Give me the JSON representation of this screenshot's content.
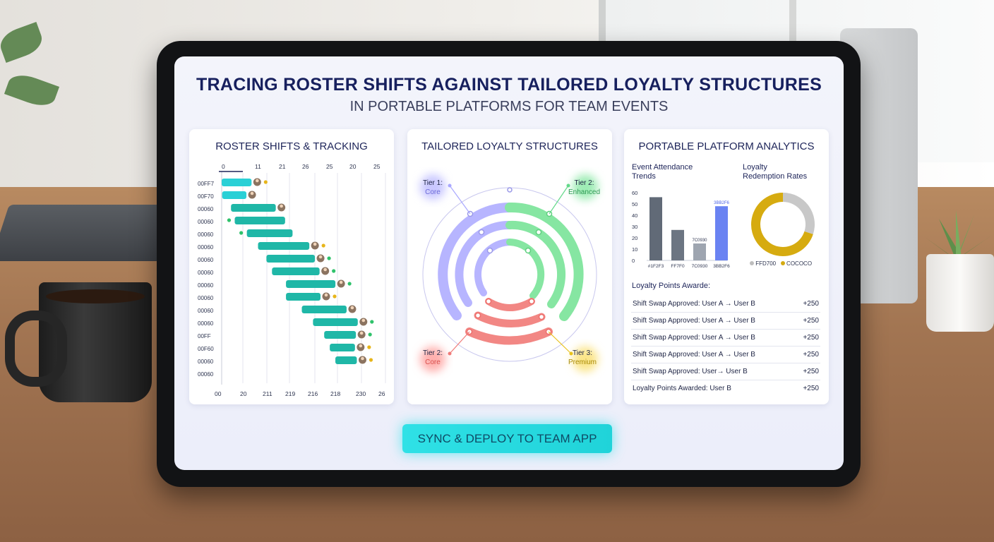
{
  "dashboard": {
    "title": "TRACING ROSTER SHIFTS AGAINST TAILORED LOYALTY STRUCTURES",
    "subtitle": "IN PORTABLE PLATFORMS FOR TEAM EVENTS"
  },
  "roster": {
    "title": "ROSTER SHIFTS & TRACKING",
    "top_ticks": [
      "0",
      "11",
      "21",
      "26",
      "25",
      "20",
      "25"
    ],
    "bottom_ticks": [
      "00",
      "20",
      "211",
      "219",
      "216",
      "218",
      "230",
      "26"
    ],
    "rows": [
      {
        "label": "00FF7",
        "start": 0.0,
        "len": 2.6,
        "avatar": true,
        "dot": "#e7b51a"
      },
      {
        "label": "00F70",
        "start": 0.05,
        "len": 2.0,
        "avatar": true,
        "dot": ""
      },
      {
        "label": "00060",
        "start": 1.0,
        "len": 4.2,
        "avatar": true,
        "dot": ""
      },
      {
        "label": "00060",
        "start": 1.4,
        "len": 4.8,
        "avatar": false,
        "dot": "#2fc26b"
      },
      {
        "label": "00060",
        "start": 2.7,
        "len": 4.3,
        "avatar": false,
        "dot": "#2fc26b"
      },
      {
        "label": "00060",
        "start": 3.9,
        "len": 4.9,
        "avatar": true,
        "dot": "#e7b51a"
      },
      {
        "label": "00060",
        "start": 4.8,
        "len": 4.6,
        "avatar": true,
        "dot": "#2fc26b"
      },
      {
        "label": "00060",
        "start": 5.4,
        "len": 4.5,
        "avatar": true,
        "dot": "#2fc26b"
      },
      {
        "label": "00060",
        "start": 6.9,
        "len": 4.7,
        "avatar": true,
        "dot": "#2fc26b"
      },
      {
        "label": "00060",
        "start": 6.9,
        "len": 3.1,
        "avatar": true,
        "dot": "#e7b51a"
      },
      {
        "label": "00060",
        "start": 8.6,
        "len": 4.2,
        "avatar": true,
        "dot": ""
      },
      {
        "label": "00060",
        "start": 9.8,
        "len": 4.2,
        "avatar": true,
        "dot": "#2fc26b"
      },
      {
        "label": "00FF",
        "start": 11.0,
        "len": 2.8,
        "avatar": true,
        "dot": "#2fc26b"
      },
      {
        "label": "00F60",
        "start": 11.6,
        "len": 2.1,
        "avatar": true,
        "dot": "#e7b51a"
      },
      {
        "label": "00060",
        "start": 12.2,
        "len": 1.7,
        "avatar": true,
        "dot": "#e7b51a"
      },
      {
        "label": "00060",
        "start": 0,
        "len": 0,
        "avatar": false,
        "dot": ""
      }
    ],
    "bar_color": "#1fb7a7",
    "accent_color": "#2ad0d6"
  },
  "loyalty": {
    "title": "TAILORED LOYALTY STRUCTURES",
    "tiers": [
      {
        "name": "Tier 1:",
        "level": "Core",
        "color": "#a9a8ff"
      },
      {
        "name": "Tier 2:",
        "level": "Enhanced",
        "color": "#63d98a"
      },
      {
        "name": "Tier 2:",
        "level": "Core",
        "color": "#f07a78"
      },
      {
        "name": "Tier 3:",
        "level": "Premium",
        "color": "#e9c21b"
      }
    ]
  },
  "analytics": {
    "title": "PORTABLE PLATFORM ANALYTICS",
    "attendance_title_line1": "Event Attendance",
    "attendance_title_line2": "Trends",
    "redemption_title_line1": "Loyalty",
    "redemption_title_line2": "Redemption Rates",
    "legend": [
      {
        "label": "FFD700",
        "color": "#bdbdbd"
      },
      {
        "label": "COCOCO",
        "color": "#d4aa11"
      }
    ],
    "points_title": "Loyalty Points Awarde:",
    "points_rows": [
      {
        "text": "Shift Swap Approved: User A → User B",
        "points": "+250"
      },
      {
        "text": "Shift Swap Approved: User A → User B",
        "points": "+250"
      },
      {
        "text": "Shift Swap Approved: User A → User B",
        "points": "+250"
      },
      {
        "text": "Shift Swap Approved: User A → User B",
        "points": "+250"
      },
      {
        "text": "Shift Swap Approved: User→ User B",
        "points": "+250"
      },
      {
        "text": "Loyalty Points Awarded: User B",
        "points": "+250"
      }
    ]
  },
  "chart_data": [
    {
      "type": "bar",
      "title": "Event Attendance Trends",
      "yticks": [
        "60",
        "50",
        "40",
        "30",
        "20",
        "10",
        "0"
      ],
      "ylim": [
        0,
        60
      ],
      "categories": [
        "#1F2F3",
        "FF7F0",
        "7C0930",
        "3BB2F6"
      ],
      "values": [
        56,
        27,
        15,
        48
      ],
      "value_labels": [
        "",
        "",
        "7C0930",
        "3BB2F6"
      ],
      "colors": [
        "#616a77",
        "#6c7582",
        "#9ea5b0",
        "#6a83f2"
      ]
    },
    {
      "type": "pie",
      "title": "Loyalty Redemption Rates",
      "categories": [
        "FFD700",
        "COCOCO"
      ],
      "values": [
        30,
        70
      ],
      "colors": [
        "#c8c8c8",
        "#d6ab10"
      ]
    }
  ],
  "cta": {
    "label": "SYNC & DEPLOY TO TEAM APP"
  }
}
